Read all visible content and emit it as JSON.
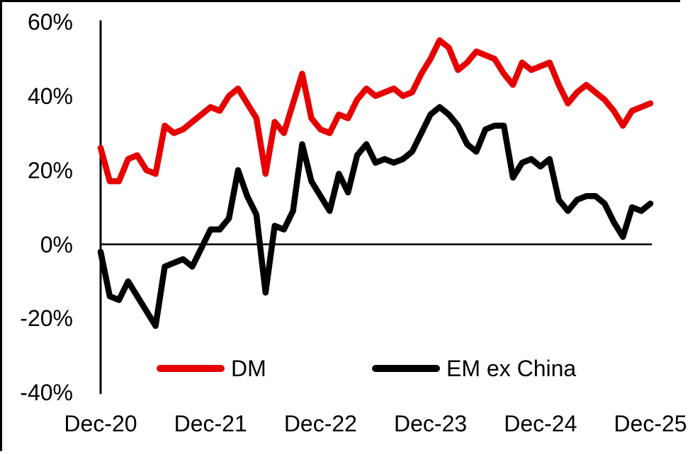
{
  "chart_data": {
    "type": "line",
    "title": "",
    "months": [
      "Dec-20",
      "Jan-21",
      "Feb-21",
      "Mar-21",
      "Apr-21",
      "May-21",
      "Jun-21",
      "Jul-21",
      "Aug-21",
      "Sep-21",
      "Oct-21",
      "Nov-21",
      "Dec-21",
      "Jan-22",
      "Feb-22",
      "Mar-22",
      "Apr-22",
      "May-22",
      "Jun-22",
      "Jul-22",
      "Aug-22",
      "Sep-22",
      "Oct-22",
      "Nov-22",
      "Dec-22",
      "Jan-23",
      "Feb-23",
      "Mar-23",
      "Apr-23",
      "May-23",
      "Jun-23",
      "Jul-23",
      "Aug-23",
      "Sep-23",
      "Oct-23",
      "Nov-23",
      "Dec-23",
      "Jan-24",
      "Feb-24",
      "Mar-24",
      "Apr-24",
      "May-24",
      "Jun-24",
      "Jul-24",
      "Aug-24",
      "Sep-24",
      "Oct-24",
      "Nov-24",
      "Dec-24",
      "Jan-25",
      "Feb-25",
      "Mar-25",
      "Apr-25",
      "May-25",
      "Jun-25",
      "Jul-25",
      "Aug-25",
      "Sep-25",
      "Oct-25",
      "Nov-25",
      "Dec-25"
    ],
    "series": [
      {
        "name": "DM",
        "color": "#E60000",
        "unit": "%",
        "values": [
          26,
          17,
          17,
          23,
          24,
          20,
          19,
          32,
          30,
          31,
          33,
          35,
          37,
          36,
          40,
          42,
          38,
          34,
          19,
          33,
          30,
          38,
          46,
          34,
          31,
          30,
          35,
          34,
          39,
          42,
          40,
          41,
          42,
          40,
          41,
          46,
          50,
          55,
          53,
          47,
          49,
          52,
          51,
          50,
          46,
          43,
          49,
          47,
          48,
          49,
          43,
          38,
          41,
          43,
          41,
          39,
          36,
          32,
          36,
          37,
          38
        ]
      },
      {
        "name": "EM ex China",
        "color": "#000000",
        "unit": "%",
        "values": [
          -2,
          -14,
          -15,
          -10,
          -14,
          -18,
          -22,
          -6,
          -5,
          -4,
          -6,
          -1,
          4,
          4,
          7,
          20,
          13,
          8,
          -13,
          5,
          4,
          9,
          27,
          17,
          13,
          9,
          19,
          14,
          24,
          27,
          22,
          23,
          22,
          23,
          25,
          30,
          35,
          37,
          35,
          32,
          27,
          25,
          31,
          32,
          32,
          18,
          22,
          23,
          21,
          23,
          12,
          9,
          12,
          13,
          13,
          11,
          6,
          2,
          10,
          9,
          11
        ]
      }
    ],
    "y_axis": {
      "tick_values": [
        60,
        40,
        20,
        0,
        -20,
        -40
      ],
      "tick_labels": [
        "60%",
        "40%",
        "20%",
        "0%",
        "-20%",
        "-40%"
      ],
      "ylim": [
        -40,
        60
      ]
    },
    "x_axis": {
      "tick_month_indices": [
        0,
        12,
        24,
        36,
        48,
        60
      ],
      "tick_labels": [
        "Dec-20",
        "Dec-21",
        "Dec-22",
        "Dec-23",
        "Dec-24",
        "Dec-25"
      ]
    },
    "grid": false,
    "zero_line": true,
    "legend_position": "bottom-center-inside",
    "axis_color": "#000000"
  }
}
